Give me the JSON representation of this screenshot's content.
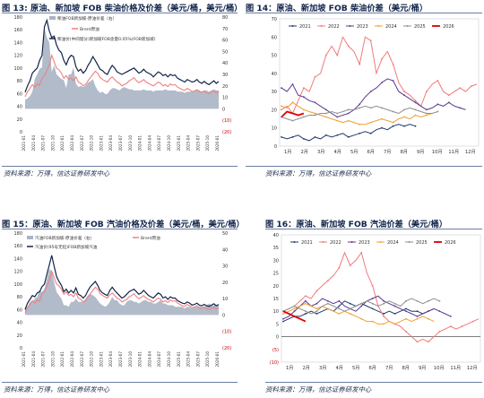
{
  "charts": [
    {
      "title": "图 13: 原油、新加坡 FOB 柴油价格及价差（美元/桶，美元/桶）",
      "source": "资料来源：万得，信达证券研发中心",
      "chart_data": {
        "type": "line",
        "legend": [
          "柴油FOB新加坡-原油价差（右）",
          "Brent原油",
          "柴油价(中间馏分)新加坡FOB含量0.05%(FOB新加坡)"
        ],
        "colors": {
          "spread": "#aab4c4",
          "brent": "#f08080",
          "diesel": "#11244a"
        },
        "left_ylim": [
          0,
          180
        ],
        "left_ticks": [
          0,
          20,
          40,
          60,
          80,
          100,
          120,
          140,
          160,
          180
        ],
        "right_ylim": [
          -20,
          80
        ],
        "right_ticks": [
          "(20)",
          "(10)",
          "0",
          "10",
          "20",
          "30",
          "40",
          "50",
          "60",
          "70",
          "80"
        ],
        "x_labels": [
          "2021-01",
          "2021-04",
          "2021-07",
          "2021-10",
          "2022-01",
          "2022-04",
          "2022-07",
          "2022-10",
          "2023-01",
          "2023-04",
          "2023-07",
          "2023-10",
          "2024-01",
          "2024-04",
          "2024-07",
          "2024-10",
          "2025-01",
          "2025-04",
          "2025-07",
          "2025-10",
          "2026-01"
        ],
        "brent": [
          55,
          63,
          68,
          74,
          70,
          75,
          73,
          84,
          88,
          96,
          105,
          120,
          110,
          100,
          97,
          92,
          84,
          88,
          82,
          84,
          80,
          86,
          78,
          76,
          72,
          74,
          80,
          85,
          90,
          95,
          92,
          85,
          82,
          80,
          78,
          83,
          86,
          82,
          78,
          76,
          72,
          74,
          76,
          80,
          82,
          85,
          80,
          77,
          79,
          82,
          78,
          76,
          74,
          72,
          75,
          78,
          76,
          72,
          74,
          71,
          75,
          73,
          74,
          70,
          68,
          66,
          65,
          68,
          66,
          63,
          64,
          66,
          63,
          62,
          64,
          61,
          60,
          62,
          64,
          61,
          63
        ],
        "diesel": [
          62,
          72,
          80,
          92,
          96,
          100,
          112,
          120,
          165,
          175,
          158,
          148,
          150,
          136,
          128,
          124,
          112,
          105,
          115,
          120,
          118,
          102,
          95,
          98,
          92,
          96,
          104,
          110,
          118,
          112,
          105,
          98,
          96,
          92,
          90,
          98,
          104,
          100,
          94,
          92,
          90,
          92,
          94,
          96,
          98,
          100,
          96,
          92,
          94,
          98,
          94,
          92,
          90,
          86,
          90,
          94,
          92,
          88,
          90,
          86,
          90,
          88,
          89,
          84,
          82,
          80,
          78,
          82,
          80,
          78,
          79,
          82,
          78,
          76,
          79,
          76,
          74,
          77,
          80,
          76,
          79
        ],
        "spread": [
          8,
          9,
          11,
          15,
          26,
          30,
          35,
          36,
          70,
          62,
          58,
          32,
          38,
          30,
          28,
          26,
          25,
          18,
          30,
          30,
          36,
          22,
          19,
          20,
          19,
          20,
          23,
          24,
          26,
          20,
          16,
          14,
          15,
          13,
          13,
          16,
          18,
          18,
          17,
          16,
          18,
          19,
          18,
          17,
          17,
          16,
          16,
          16,
          16,
          17,
          16,
          16,
          16,
          15,
          16,
          16,
          16,
          16,
          17,
          16,
          16,
          16,
          16,
          15,
          15,
          15,
          14,
          15,
          15,
          15,
          16,
          17,
          16,
          15,
          16,
          16,
          15,
          16,
          17,
          16,
          16
        ]
      }
    },
    {
      "title": "图 14：原油、新加坡 FOB 柴油价差（美元/桶）",
      "source": "资料来源：万得，信达证券研发中心",
      "chart_data": {
        "type": "line",
        "x_labels": [
          "1月",
          "2月",
          "3月",
          "4月",
          "5月",
          "6月",
          "7月",
          "8月",
          "9月",
          "10月",
          "11月",
          "12月"
        ],
        "ylim": [
          0,
          70
        ],
        "ticks": [
          0,
          10,
          20,
          30,
          40,
          50,
          60,
          70
        ],
        "series": [
          {
            "name": "2021",
            "color": "#1f3a6b",
            "values": [
              5,
              4,
              5,
              6,
              4,
              3,
              5,
              4,
              6,
              5,
              6,
              7,
              5,
              6,
              7,
              8,
              7,
              9,
              10,
              9,
              11,
              12,
              11,
              12,
              11
            ]
          },
          {
            "name": "2022",
            "color": "#f07a7a",
            "values": [
              20,
              22,
              18,
              25,
              32,
              30,
              38,
              40,
              50,
              55,
              50,
              60,
              55,
              52,
              45,
              60,
              58,
              40,
              48,
              52,
              45,
              35,
              30,
              28,
              25,
              22,
              30,
              34,
              36,
              30,
              28,
              30,
              32,
              30,
              33,
              34
            ]
          },
          {
            "name": "2023",
            "color": "#5b3a8e",
            "values": [
              32,
              30,
              34,
              28,
              27,
              25,
              24,
              22,
              20,
              18,
              16,
              17,
              18,
              20,
              23,
              27,
              30,
              32,
              35,
              37,
              36,
              30,
              28,
              26,
              24,
              22,
              20,
              21,
              23,
              22,
              24,
              22,
              21,
              20
            ]
          },
          {
            "name": "2024",
            "color": "#f0a030",
            "values": [
              22,
              21,
              24,
              22,
              20,
              19,
              18,
              17,
              16,
              15,
              14,
              13,
              14,
              13,
              12,
              12,
              13,
              14,
              15,
              14,
              13,
              15,
              16,
              15,
              17,
              16,
              17,
              18
            ]
          },
          {
            "name": "2025",
            "color": "#8e8e8e",
            "values": [
              16,
              15,
              14,
              15,
              16,
              17,
              17,
              18,
              18,
              19,
              18,
              19,
              20,
              20,
              21,
              22,
              21,
              22,
              21,
              20,
              19,
              18,
              20,
              21,
              20,
              19,
              18,
              18,
              19
            ]
          },
          {
            "name": "2026",
            "color": "#e00000",
            "values": [
              16,
              19,
              18,
              17,
              18
            ]
          }
        ]
      }
    },
    {
      "title": "图 15：原油、新加坡 FOB 汽油价格及价差（美元/桶，美元/桶）",
      "source": "资料来源：万得，信达证券研发中心",
      "chart_data": {
        "type": "line",
        "legend": [
          "汽油FOB新加坡-原油价差（右）",
          "Brent原油",
          "汽油价(95号无铅)FOB新加坡汽油"
        ],
        "colors": {
          "spread": "#aab4c4",
          "brent": "#f08080",
          "gasoline": "#11244a"
        },
        "left_ylim": [
          0,
          180
        ],
        "left_ticks": [
          0,
          20,
          40,
          60,
          80,
          100,
          120,
          140,
          160,
          180
        ],
        "right_ylim": [
          -20,
          50
        ],
        "right_ticks": [
          "(20)",
          "(10)",
          "0",
          "10",
          "20",
          "30",
          "40",
          "50"
        ],
        "x_labels": [
          "2021-01",
          "2021-04",
          "2021-07",
          "2021-10",
          "2022-01",
          "2022-04",
          "2022-07",
          "2022-10",
          "2023-01",
          "2023-04",
          "2023-07",
          "2023-10",
          "2024-01",
          "2024-04",
          "2024-07",
          "2024-10",
          "2025-01",
          "2025-04",
          "2025-07",
          "2025-10",
          "2026-01"
        ],
        "brent": [
          55,
          63,
          68,
          74,
          70,
          75,
          73,
          84,
          88,
          96,
          105,
          120,
          110,
          100,
          97,
          92,
          84,
          88,
          82,
          84,
          80,
          86,
          78,
          76,
          72,
          74,
          80,
          85,
          90,
          95,
          92,
          85,
          82,
          80,
          78,
          83,
          86,
          82,
          78,
          76,
          72,
          74,
          76,
          80,
          82,
          85,
          80,
          77,
          79,
          82,
          78,
          76,
          74,
          72,
          75,
          78,
          76,
          72,
          74,
          71,
          75,
          73,
          74,
          70,
          68,
          66,
          65,
          68,
          66,
          63,
          64,
          66,
          63,
          62,
          64,
          61,
          60,
          62,
          64,
          61,
          63
        ],
        "gasoline": [
          60,
          70,
          76,
          82,
          80,
          86,
          88,
          96,
          100,
          115,
          130,
          145,
          128,
          112,
          104,
          98,
          88,
          92,
          86,
          90,
          86,
          94,
          84,
          82,
          78,
          82,
          90,
          96,
          100,
          104,
          98,
          90,
          86,
          84,
          82,
          90,
          95,
          90,
          86,
          82,
          78,
          80,
          84,
          88,
          90,
          92,
          88,
          84,
          86,
          90,
          86,
          82,
          80,
          78,
          82,
          86,
          84,
          78,
          80,
          76,
          80,
          78,
          78,
          74,
          72,
          70,
          69,
          72,
          70,
          67,
          68,
          70,
          67,
          66,
          68,
          66,
          65,
          67,
          69,
          66,
          68
        ],
        "spread": [
          4,
          5,
          8,
          8,
          10,
          11,
          15,
          14,
          16,
          22,
          28,
          27,
          20,
          14,
          12,
          10,
          6,
          6,
          5,
          8,
          8,
          10,
          8,
          8,
          8,
          10,
          12,
          13,
          12,
          11,
          9,
          7,
          6,
          5,
          6,
          8,
          11,
          9,
          9,
          7,
          6,
          6,
          8,
          9,
          9,
          8,
          8,
          7,
          8,
          9,
          9,
          8,
          8,
          7,
          7,
          8,
          9,
          7,
          7,
          6,
          6,
          6,
          5,
          5,
          5,
          5,
          4,
          5,
          5,
          4,
          5,
          5,
          5,
          5,
          5,
          6,
          7,
          6,
          6,
          6,
          6
        ]
      }
    },
    {
      "title": "图 16：原油、新加坡 FOB 汽油价差（美元/桶）",
      "source": "资料来源：万得，信达证券研发中心",
      "chart_data": {
        "type": "line",
        "x_labels": [
          "1月",
          "2月",
          "3月",
          "4月",
          "5月",
          "6月",
          "7月",
          "8月",
          "9月",
          "10月",
          "11月",
          "12月"
        ],
        "ylim": [
          -10,
          40
        ],
        "ticks": [
          "(10)",
          "(5)",
          "0",
          "5",
          "10",
          "15",
          "20",
          "25",
          "30",
          "35",
          "40"
        ],
        "series": [
          {
            "name": "2021",
            "color": "#1f3a6b",
            "values": [
              6,
              7,
              8,
              8,
              9,
              10,
              9,
              10,
              11,
              10,
              12,
              14,
              13,
              12,
              13,
              12,
              11,
              10,
              9,
              10,
              9,
              10,
              11,
              10,
              10,
              9,
              10,
              11
            ]
          },
          {
            "name": "2022",
            "color": "#f07a7a",
            "values": [
              10,
              11,
              12,
              14,
              16,
              15,
              18,
              20,
              22,
              24,
              27,
              33,
              28,
              30,
              33,
              25,
              20,
              12,
              8,
              6,
              5,
              4,
              2,
              0,
              -2,
              -1,
              -2,
              0,
              2,
              3,
              4,
              3,
              4,
              5,
              6,
              7
            ]
          },
          {
            "name": "2023",
            "color": "#5b3a8e",
            "values": [
              7,
              8,
              10,
              12,
              14,
              12,
              13,
              15,
              14,
              13,
              14,
              12,
              11,
              10,
              12,
              14,
              15,
              16,
              14,
              13,
              12,
              11,
              10,
              9,
              8,
              9,
              10,
              11,
              10,
              9,
              8
            ]
          },
          {
            "name": "2024",
            "color": "#f0a030",
            "values": [
              9,
              10,
              11,
              12,
              13,
              12,
              11,
              12,
              11,
              10,
              9,
              10,
              9,
              8,
              7,
              6,
              6,
              5,
              5,
              6,
              5,
              6,
              7,
              6,
              7,
              8,
              7,
              6
            ]
          },
          {
            "name": "2025",
            "color": "#8e8e8e",
            "values": [
              10,
              11,
              12,
              11,
              10,
              9,
              10,
              12,
              13,
              12,
              11,
              10,
              11,
              12,
              13,
              14,
              13,
              12,
              13,
              14,
              13,
              12,
              14,
              15,
              14,
              13,
              14,
              15,
              14
            ]
          },
          {
            "name": "2026",
            "color": "#e00000",
            "values": [
              10,
              9,
              8,
              7,
              6
            ]
          }
        ]
      }
    }
  ]
}
